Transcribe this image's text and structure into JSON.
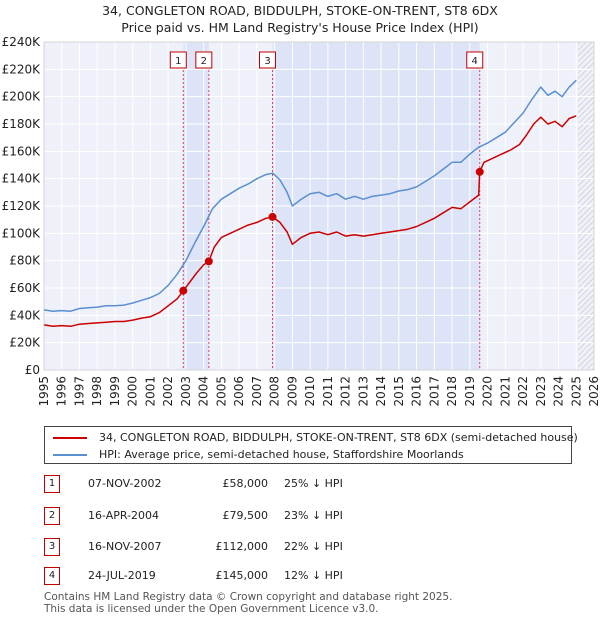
{
  "chart_data": {
    "type": "line",
    "title": "34, CONGLETON ROAD, BIDDULPH, STOKE-ON-TRENT, ST8 6DX",
    "subtitle": "Price paid vs. HM Land Registry's House Price Index (HPI)",
    "xlim": [
      1995,
      2026
    ],
    "ylim": [
      0,
      240000
    ],
    "x_ticks": [
      "1995",
      "1996",
      "1997",
      "1998",
      "1999",
      "2000",
      "2001",
      "2002",
      "2003",
      "2004",
      "2005",
      "2006",
      "2007",
      "2008",
      "2009",
      "2010",
      "2011",
      "2012",
      "2013",
      "2014",
      "2015",
      "2016",
      "2017",
      "2018",
      "2019",
      "2020",
      "2021",
      "2022",
      "2023",
      "2024",
      "2025",
      "2026"
    ],
    "y_ticks": [
      {
        "value": 0,
        "label": "£0"
      },
      {
        "value": 20000,
        "label": "£20K"
      },
      {
        "value": 40000,
        "label": "£40K"
      },
      {
        "value": 60000,
        "label": "£60K"
      },
      {
        "value": 80000,
        "label": "£80K"
      },
      {
        "value": 100000,
        "label": "£100K"
      },
      {
        "value": 120000,
        "label": "£120K"
      },
      {
        "value": 140000,
        "label": "£140K"
      },
      {
        "value": 160000,
        "label": "£160K"
      },
      {
        "value": 180000,
        "label": "£180K"
      },
      {
        "value": 200000,
        "label": "£200K"
      },
      {
        "value": 220000,
        "label": "£220K"
      },
      {
        "value": 240000,
        "label": "£240K"
      }
    ],
    "grid": true,
    "hatch_from": 2025.1,
    "shaded_ranges": [
      [
        2002.85,
        2004.29
      ],
      [
        2007.88,
        2019.56
      ]
    ],
    "series": [
      {
        "name": "34, CONGLETON ROAD, BIDDULPH, STOKE-ON-TRENT, ST8 6DX (semi-detached house)",
        "color": "#cc0000",
        "points": [
          [
            1995.0,
            33000
          ],
          [
            1995.5,
            32000
          ],
          [
            1996.0,
            32500
          ],
          [
            1996.5,
            32000
          ],
          [
            1997.0,
            33500
          ],
          [
            1997.5,
            34000
          ],
          [
            1998.0,
            34500
          ],
          [
            1998.5,
            35000
          ],
          [
            1999.0,
            35500
          ],
          [
            1999.5,
            35500
          ],
          [
            2000.0,
            36500
          ],
          [
            2000.5,
            38000
          ],
          [
            2001.0,
            39000
          ],
          [
            2001.5,
            42000
          ],
          [
            2002.0,
            47000
          ],
          [
            2002.5,
            52000
          ],
          [
            2002.85,
            58000
          ],
          [
            2003.2,
            64000
          ],
          [
            2003.6,
            71000
          ],
          [
            2004.0,
            77000
          ],
          [
            2004.29,
            79500
          ],
          [
            2004.6,
            90000
          ],
          [
            2005.0,
            97000
          ],
          [
            2005.5,
            100000
          ],
          [
            2006.0,
            103000
          ],
          [
            2006.5,
            106000
          ],
          [
            2007.0,
            108000
          ],
          [
            2007.5,
            111000
          ],
          [
            2007.88,
            112000
          ],
          [
            2008.3,
            108000
          ],
          [
            2008.7,
            101000
          ],
          [
            2009.0,
            92000
          ],
          [
            2009.5,
            97000
          ],
          [
            2010.0,
            100000
          ],
          [
            2010.5,
            101000
          ],
          [
            2011.0,
            99000
          ],
          [
            2011.5,
            101000
          ],
          [
            2012.0,
            98000
          ],
          [
            2012.5,
            99000
          ],
          [
            2013.0,
            98000
          ],
          [
            2013.5,
            99000
          ],
          [
            2014.0,
            100000
          ],
          [
            2014.5,
            101000
          ],
          [
            2015.0,
            102000
          ],
          [
            2015.5,
            103000
          ],
          [
            2016.0,
            105000
          ],
          [
            2016.5,
            108000
          ],
          [
            2017.0,
            111000
          ],
          [
            2017.5,
            115000
          ],
          [
            2018.0,
            119000
          ],
          [
            2018.5,
            118000
          ],
          [
            2019.0,
            123000
          ],
          [
            2019.5,
            128000
          ],
          [
            2019.56,
            145000
          ],
          [
            2019.8,
            152000
          ],
          [
            2020.3,
            155000
          ],
          [
            2020.8,
            158000
          ],
          [
            2021.3,
            161000
          ],
          [
            2021.8,
            165000
          ],
          [
            2022.2,
            172000
          ],
          [
            2022.6,
            180000
          ],
          [
            2023.0,
            185000
          ],
          [
            2023.4,
            180000
          ],
          [
            2023.8,
            182000
          ],
          [
            2024.2,
            178000
          ],
          [
            2024.6,
            184000
          ],
          [
            2025.0,
            186000
          ]
        ]
      },
      {
        "name": "HPI: Average price, semi-detached house, Staffordshire Moorlands",
        "color": "#5b8fd0",
        "points": [
          [
            1995.0,
            44000
          ],
          [
            1995.5,
            43000
          ],
          [
            1996.0,
            43500
          ],
          [
            1996.5,
            43000
          ],
          [
            1997.0,
            45000
          ],
          [
            1997.5,
            45500
          ],
          [
            1998.0,
            46000
          ],
          [
            1998.5,
            47000
          ],
          [
            1999.0,
            47000
          ],
          [
            1999.5,
            47500
          ],
          [
            2000.0,
            49000
          ],
          [
            2000.5,
            51000
          ],
          [
            2001.0,
            53000
          ],
          [
            2001.5,
            56000
          ],
          [
            2002.0,
            62000
          ],
          [
            2002.5,
            70000
          ],
          [
            2003.0,
            80000
          ],
          [
            2003.5,
            93000
          ],
          [
            2004.0,
            105000
          ],
          [
            2004.5,
            118000
          ],
          [
            2005.0,
            125000
          ],
          [
            2005.5,
            129000
          ],
          [
            2006.0,
            133000
          ],
          [
            2006.5,
            136000
          ],
          [
            2007.0,
            140000
          ],
          [
            2007.5,
            143000
          ],
          [
            2007.9,
            144000
          ],
          [
            2008.3,
            139000
          ],
          [
            2008.7,
            130000
          ],
          [
            2009.0,
            120000
          ],
          [
            2009.5,
            125000
          ],
          [
            2010.0,
            129000
          ],
          [
            2010.5,
            130000
          ],
          [
            2011.0,
            127000
          ],
          [
            2011.5,
            129000
          ],
          [
            2012.0,
            125000
          ],
          [
            2012.5,
            127000
          ],
          [
            2013.0,
            125000
          ],
          [
            2013.5,
            127000
          ],
          [
            2014.0,
            128000
          ],
          [
            2014.5,
            129000
          ],
          [
            2015.0,
            131000
          ],
          [
            2015.5,
            132000
          ],
          [
            2016.0,
            134000
          ],
          [
            2016.5,
            138000
          ],
          [
            2017.0,
            142000
          ],
          [
            2017.5,
            147000
          ],
          [
            2018.0,
            152000
          ],
          [
            2018.5,
            152000
          ],
          [
            2019.0,
            158000
          ],
          [
            2019.5,
            163000
          ],
          [
            2020.0,
            166000
          ],
          [
            2020.5,
            170000
          ],
          [
            2021.0,
            174000
          ],
          [
            2021.5,
            181000
          ],
          [
            2022.0,
            188000
          ],
          [
            2022.5,
            198000
          ],
          [
            2023.0,
            207000
          ],
          [
            2023.4,
            201000
          ],
          [
            2023.8,
            204000
          ],
          [
            2024.2,
            200000
          ],
          [
            2024.6,
            207000
          ],
          [
            2025.0,
            212000
          ]
        ]
      }
    ],
    "markers": [
      {
        "label": "1",
        "x": 2002.85,
        "y": 58000
      },
      {
        "label": "2",
        "x": 2004.29,
        "y": 79500
      },
      {
        "label": "3",
        "x": 2007.88,
        "y": 112000
      },
      {
        "label": "4",
        "x": 2019.56,
        "y": 145000
      }
    ]
  },
  "legend": {
    "property_label": "34, CONGLETON ROAD, BIDDULPH, STOKE-ON-TRENT, ST8 6DX (semi-detached house)",
    "hpi_label": "HPI: Average price, semi-detached house, Staffordshire Moorlands"
  },
  "transactions": [
    {
      "num": "1",
      "date": "07-NOV-2002",
      "price": "£58,000",
      "hpi": "25% ↓ HPI"
    },
    {
      "num": "2",
      "date": "16-APR-2004",
      "price": "£79,500",
      "hpi": "23% ↓ HPI"
    },
    {
      "num": "3",
      "date": "16-NOV-2007",
      "price": "£112,000",
      "hpi": "22% ↓ HPI"
    },
    {
      "num": "4",
      "date": "24-JUL-2019",
      "price": "£145,000",
      "hpi": "12% ↓ HPI"
    }
  ],
  "footer": {
    "line1": "Contains HM Land Registry data © Crown copyright and database right 2025.",
    "line2": "This data is licensed under the Open Government Licence v3.0."
  }
}
